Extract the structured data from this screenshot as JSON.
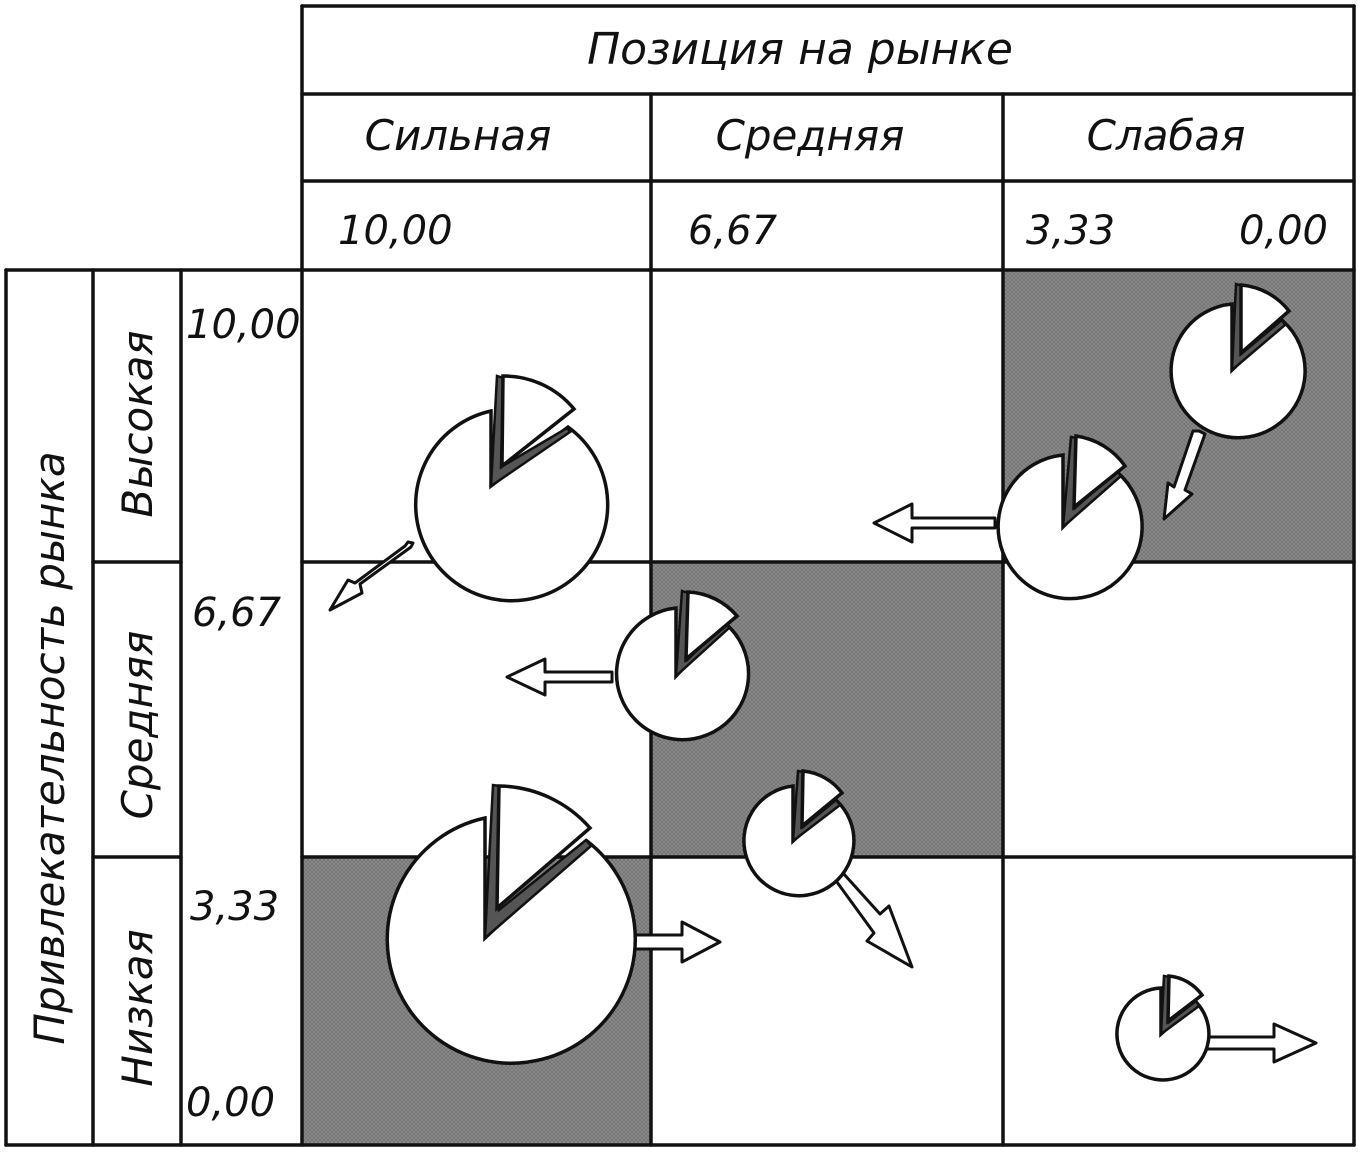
{
  "header": {
    "title": "Позиция на рынке",
    "columns": [
      "Сильная",
      "Средняя",
      "Слабая"
    ],
    "column_values": [
      "10,00",
      "6,67",
      "3,33",
      "0,00"
    ]
  },
  "side": {
    "axis_label": "Привлекательность рынка",
    "rows": [
      "Высокая",
      "Средняя",
      "Низкая"
    ],
    "row_values": [
      "10,00",
      "6,67",
      "3,33",
      "0,00"
    ]
  },
  "colors": {
    "line": "#111111",
    "shaded_cell": "#8c8c8c",
    "pie_fill": "#ffffff",
    "wedge_shadow": "#555555"
  },
  "shaded_cells": [
    {
      "row": "Высокая",
      "column": "Слабая"
    },
    {
      "row": "Средняя",
      "column": "Средняя"
    },
    {
      "row": "Низкая",
      "column": "Сильная"
    }
  ]
}
